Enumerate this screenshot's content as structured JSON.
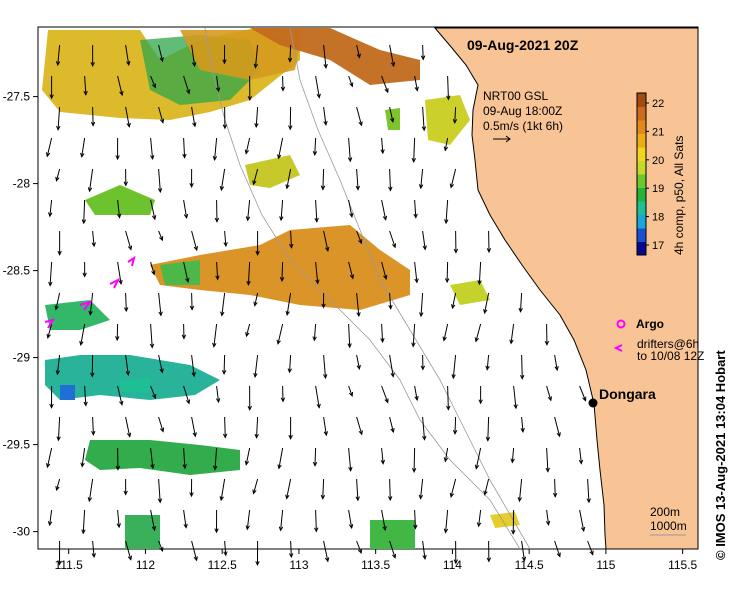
{
  "title": "09-Aug-2021 20Z",
  "product": {
    "name": "NRT00 GSL",
    "time": "09-Aug 18:00Z",
    "scale": "0.5m/s (1kt 6h)"
  },
  "colorbar": {
    "label": "4h comp, p50, All Sats",
    "ticks": [
      "22",
      "21",
      "20",
      "19",
      "18",
      "17"
    ],
    "colors": [
      "#08088e",
      "#1a4fd0",
      "#1aa6d8",
      "#1fbf95",
      "#22b43a",
      "#6dc82d",
      "#c6d92a",
      "#f2d51e",
      "#ecac17",
      "#e08a1e",
      "#cc6b1c",
      "#a64a14"
    ]
  },
  "legend": {
    "argo": "Argo",
    "drifters_line1": "drifters@6h",
    "drifters_line2": "to 10/08 12Z",
    "argo_color": "#ff00ff",
    "drifter_color": "#ff00ff"
  },
  "place": {
    "name": "Dongara",
    "lon": 114.93,
    "lat": -29.25
  },
  "bathymetry_legend": {
    "line1": "200m",
    "line2": "1000m"
  },
  "axes": {
    "x_ticks": [
      "111.5",
      "112",
      "112.5",
      "113",
      "113.5",
      "114",
      "114.5",
      "115",
      "115.5"
    ],
    "y_ticks": [
      "-27.5",
      "-28",
      "-28.5",
      "-29",
      "-29.5",
      "-30"
    ],
    "lon_range": [
      111.3,
      115.6
    ],
    "lat_range": [
      -30.1,
      -27.1
    ]
  },
  "credit": "© IMOS 13-Aug-2021 13:04 Hobart",
  "colors": {
    "land": "#f8c495",
    "coast": "#000000",
    "bathy": "#9a9a9a"
  }
}
